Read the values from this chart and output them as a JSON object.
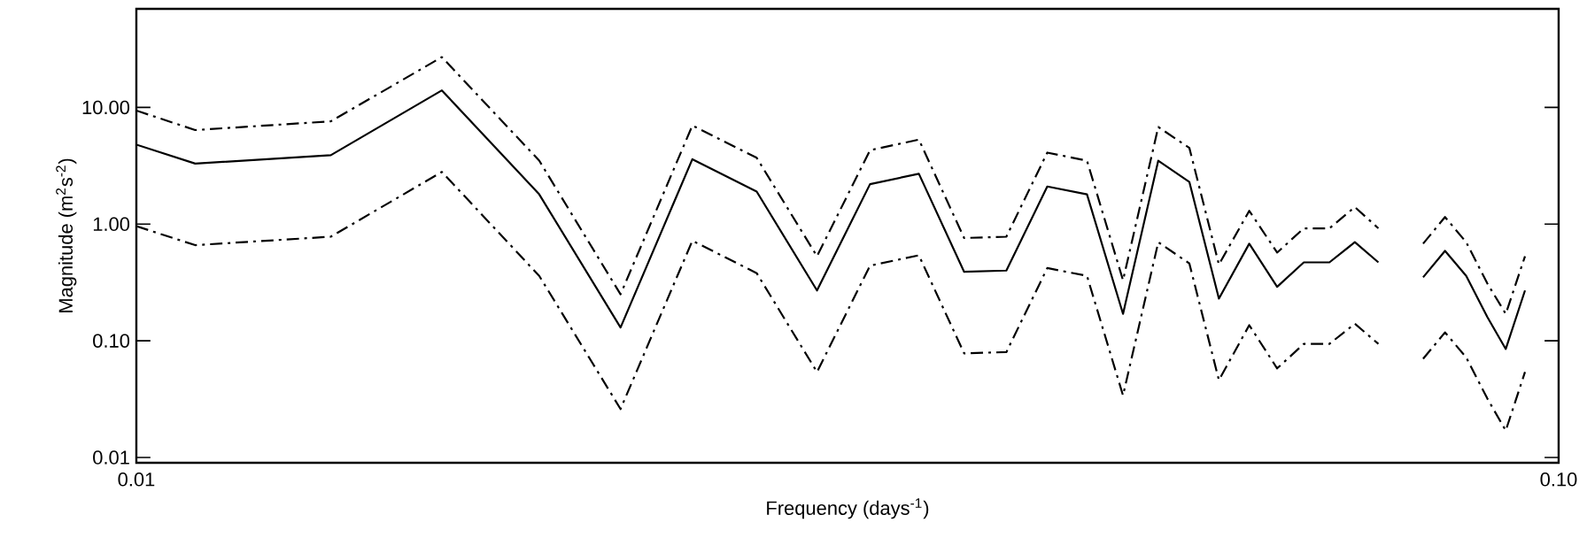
{
  "chart_data": {
    "type": "line",
    "xlabel": "Frequency (days$^{-1}$)",
    "ylabel": "Magnitude (m$^{2}$s$^{-2}$)",
    "log": "xy",
    "xlim": [
      0.01,
      0.1
    ],
    "ylim": [
      0.009,
      70
    ],
    "xticks": [
      {
        "value": 0.01,
        "label": "0.01"
      },
      {
        "value": 0.1,
        "label": "0.10"
      }
    ],
    "yticks": [
      {
        "value": 0.01,
        "label": "0.01"
      },
      {
        "value": 0.1,
        "label": "0.10"
      },
      {
        "value": 1,
        "label": "1.00"
      },
      {
        "value": 10,
        "label": "10.00"
      }
    ],
    "x": [
      0.01,
      0.011,
      0.0137,
      0.0164,
      0.0192,
      0.0219,
      0.0246,
      0.0273,
      0.0301,
      0.0328,
      0.0355,
      0.0382,
      0.0409,
      0.0437,
      0.0466,
      0.0494,
      0.0523,
      0.055,
      0.0577,
      0.0606,
      0.0634,
      0.0662,
      0.069,
      0.0719,
      0.0747,
      0.0773,
      0.0803,
      0.0832,
      0.0861,
      0.0891,
      0.0918,
      0.0947
    ],
    "series": [
      {
        "color": "#000000",
        "line_style": "solid",
        "values": [
          4.8,
          3.3,
          3.9,
          14,
          1.8,
          0.13,
          3.6,
          1.9,
          0.27,
          2.2,
          2.7,
          0.39,
          0.4,
          2.1,
          1.8,
          0.17,
          3.5,
          2.3,
          0.23,
          0.68,
          0.29,
          0.47,
          0.47,
          0.7,
          0.47,
          null,
          0.35,
          0.59,
          0.36,
          0.16,
          0.085,
          0.27
        ]
      },
      {
        "color": "#000000",
        "line_style": "dashdot",
        "values": [
          9.4,
          6.4,
          7.6,
          27,
          3.5,
          0.25,
          7.0,
          3.7,
          0.53,
          4.3,
          5.3,
          0.76,
          0.78,
          4.1,
          3.5,
          0.33,
          6.8,
          4.5,
          0.45,
          1.3,
          0.57,
          0.92,
          0.92,
          1.4,
          0.92,
          null,
          0.68,
          1.15,
          0.7,
          0.31,
          0.17,
          0.53
        ]
      },
      {
        "color": "#000000",
        "line_style": "dashdot",
        "values": [
          0.96,
          0.66,
          0.78,
          2.8,
          0.36,
          0.026,
          0.72,
          0.38,
          0.054,
          0.44,
          0.54,
          0.078,
          0.08,
          0.42,
          0.36,
          0.034,
          0.7,
          0.46,
          0.046,
          0.136,
          0.058,
          0.094,
          0.094,
          0.14,
          0.094,
          null,
          0.07,
          0.118,
          0.072,
          0.032,
          0.017,
          0.054
        ]
      }
    ]
  }
}
